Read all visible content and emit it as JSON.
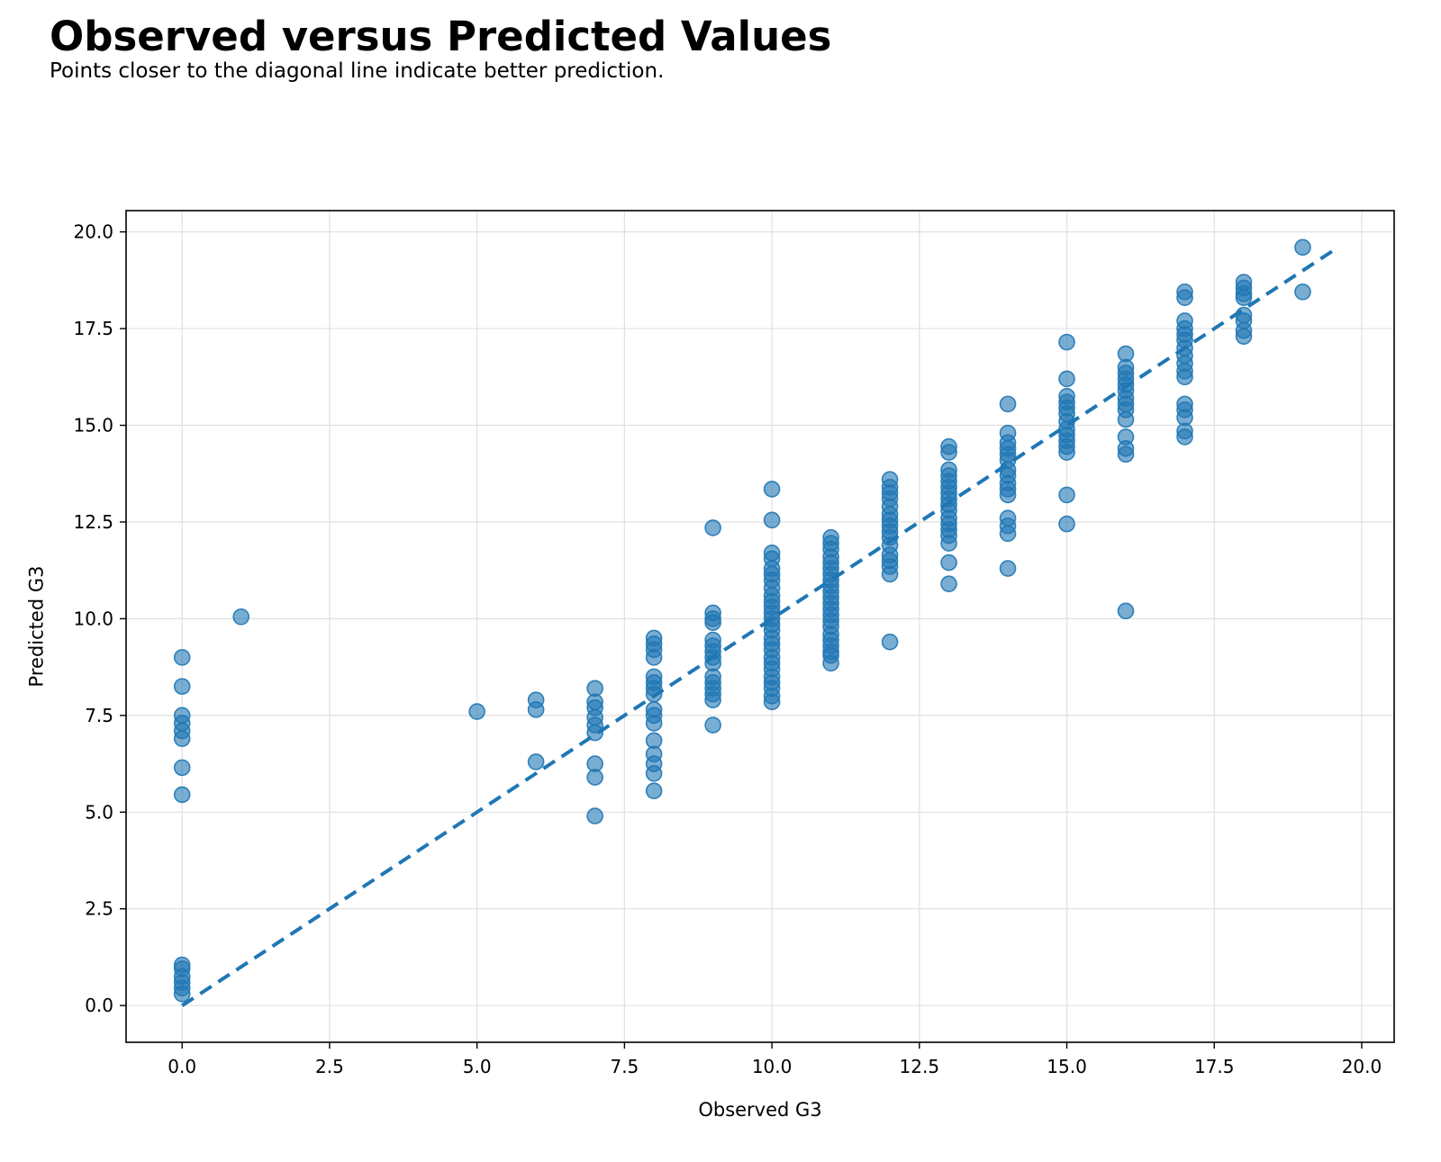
{
  "chart_data": {
    "type": "scatter",
    "title": "Observed versus Predicted Values",
    "subtitle": "Points closer to the diagonal line indicate better prediction.",
    "xlabel": "Observed G3",
    "ylabel": "Predicted G3",
    "xlim": [
      -0.95,
      20.55
    ],
    "ylim": [
      -0.95,
      20.55
    ],
    "xticks": [
      "0.0",
      "2.5",
      "5.0",
      "7.5",
      "10.0",
      "12.5",
      "15.0",
      "17.5",
      "20.0"
    ],
    "yticks": [
      "0.0",
      "2.5",
      "5.0",
      "7.5",
      "10.0",
      "12.5",
      "15.0",
      "17.5",
      "20.0"
    ],
    "grid": true,
    "colors": {
      "points": "#1f77b4",
      "diagonal": "#1f77b4",
      "grid": "#e0e0e0"
    },
    "diagonal": {
      "style": "dashed",
      "from": [
        0,
        0
      ],
      "to": [
        19.6,
        19.6
      ]
    },
    "points": [
      [
        0,
        9.0
      ],
      [
        0,
        8.25
      ],
      [
        0,
        7.5
      ],
      [
        0,
        7.3
      ],
      [
        0,
        7.1
      ],
      [
        0,
        6.9
      ],
      [
        0,
        6.15
      ],
      [
        0,
        5.45
      ],
      [
        0,
        1.05
      ],
      [
        0,
        0.95
      ],
      [
        0,
        0.75
      ],
      [
        0,
        0.6
      ],
      [
        0,
        0.45
      ],
      [
        0,
        0.3
      ],
      [
        1,
        10.05
      ],
      [
        5,
        7.6
      ],
      [
        6,
        7.9
      ],
      [
        6,
        7.65
      ],
      [
        6,
        6.3
      ],
      [
        7,
        8.2
      ],
      [
        7,
        7.85
      ],
      [
        7,
        7.7
      ],
      [
        7,
        7.45
      ],
      [
        7,
        7.25
      ],
      [
        7,
        7.05
      ],
      [
        7,
        6.25
      ],
      [
        7,
        5.9
      ],
      [
        7,
        4.9
      ],
      [
        8,
        9.5
      ],
      [
        8,
        9.35
      ],
      [
        8,
        9.2
      ],
      [
        8,
        9.0
      ],
      [
        8,
        8.5
      ],
      [
        8,
        8.35
      ],
      [
        8,
        8.2
      ],
      [
        8,
        8.05
      ],
      [
        8,
        7.65
      ],
      [
        8,
        7.5
      ],
      [
        8,
        7.3
      ],
      [
        8,
        6.85
      ],
      [
        8,
        6.5
      ],
      [
        8,
        6.25
      ],
      [
        8,
        6.0
      ],
      [
        8,
        5.55
      ],
      [
        9,
        12.35
      ],
      [
        9,
        10.15
      ],
      [
        9,
        10.0
      ],
      [
        9,
        9.9
      ],
      [
        9,
        9.45
      ],
      [
        9,
        9.3
      ],
      [
        9,
        9.15
      ],
      [
        9,
        9.0
      ],
      [
        9,
        8.85
      ],
      [
        9,
        8.5
      ],
      [
        9,
        8.35
      ],
      [
        9,
        8.2
      ],
      [
        9,
        8.05
      ],
      [
        9,
        7.9
      ],
      [
        9,
        7.25
      ],
      [
        10,
        13.35
      ],
      [
        10,
        12.55
      ],
      [
        10,
        11.7
      ],
      [
        10,
        11.55
      ],
      [
        10,
        11.3
      ],
      [
        10,
        11.15
      ],
      [
        10,
        11.0
      ],
      [
        10,
        10.8
      ],
      [
        10,
        10.6
      ],
      [
        10,
        10.45
      ],
      [
        10,
        10.3
      ],
      [
        10,
        10.15
      ],
      [
        10,
        10.0
      ],
      [
        10,
        9.85
      ],
      [
        10,
        9.7
      ],
      [
        10,
        9.5
      ],
      [
        10,
        9.35
      ],
      [
        10,
        9.2
      ],
      [
        10,
        9.0
      ],
      [
        10,
        8.85
      ],
      [
        10,
        8.7
      ],
      [
        10,
        8.5
      ],
      [
        10,
        8.35
      ],
      [
        10,
        8.2
      ],
      [
        10,
        8.0
      ],
      [
        10,
        7.85
      ],
      [
        11,
        12.1
      ],
      [
        11,
        11.95
      ],
      [
        11,
        11.8
      ],
      [
        11,
        11.6
      ],
      [
        11,
        11.45
      ],
      [
        11,
        11.3
      ],
      [
        11,
        11.15
      ],
      [
        11,
        11.0
      ],
      [
        11,
        10.85
      ],
      [
        11,
        10.7
      ],
      [
        11,
        10.55
      ],
      [
        11,
        10.4
      ],
      [
        11,
        10.25
      ],
      [
        11,
        10.1
      ],
      [
        11,
        9.95
      ],
      [
        11,
        9.8
      ],
      [
        11,
        9.6
      ],
      [
        11,
        9.45
      ],
      [
        11,
        9.3
      ],
      [
        11,
        9.15
      ],
      [
        11,
        9.05
      ],
      [
        11,
        8.85
      ],
      [
        12,
        13.6
      ],
      [
        12,
        13.4
      ],
      [
        12,
        13.25
      ],
      [
        12,
        13.1
      ],
      [
        12,
        12.9
      ],
      [
        12,
        12.7
      ],
      [
        12,
        12.55
      ],
      [
        12,
        12.4
      ],
      [
        12,
        12.25
      ],
      [
        12,
        12.1
      ],
      [
        12,
        11.9
      ],
      [
        12,
        11.65
      ],
      [
        12,
        11.5
      ],
      [
        12,
        11.35
      ],
      [
        12,
        11.15
      ],
      [
        12,
        9.4
      ],
      [
        13,
        14.45
      ],
      [
        13,
        14.3
      ],
      [
        13,
        13.85
      ],
      [
        13,
        13.7
      ],
      [
        13,
        13.55
      ],
      [
        13,
        13.4
      ],
      [
        13,
        13.25
      ],
      [
        13,
        13.1
      ],
      [
        13,
        12.95
      ],
      [
        13,
        12.8
      ],
      [
        13,
        12.6
      ],
      [
        13,
        12.45
      ],
      [
        13,
        12.3
      ],
      [
        13,
        12.15
      ],
      [
        13,
        11.95
      ],
      [
        13,
        11.45
      ],
      [
        13,
        10.9
      ],
      [
        14,
        15.55
      ],
      [
        14,
        14.8
      ],
      [
        14,
        14.55
      ],
      [
        14,
        14.4
      ],
      [
        14,
        14.25
      ],
      [
        14,
        14.1
      ],
      [
        14,
        13.85
      ],
      [
        14,
        13.7
      ],
      [
        14,
        13.5
      ],
      [
        14,
        13.35
      ],
      [
        14,
        13.2
      ],
      [
        14,
        12.6
      ],
      [
        14,
        12.4
      ],
      [
        14,
        12.2
      ],
      [
        14,
        11.3
      ],
      [
        15,
        17.15
      ],
      [
        15,
        16.2
      ],
      [
        15,
        15.75
      ],
      [
        15,
        15.6
      ],
      [
        15,
        15.45
      ],
      [
        15,
        15.3
      ],
      [
        15,
        15.1
      ],
      [
        15,
        14.9
      ],
      [
        15,
        14.75
      ],
      [
        15,
        14.6
      ],
      [
        15,
        14.45
      ],
      [
        15,
        14.3
      ],
      [
        15,
        13.2
      ],
      [
        15,
        12.45
      ],
      [
        16,
        16.85
      ],
      [
        16,
        16.5
      ],
      [
        16,
        16.35
      ],
      [
        16,
        16.2
      ],
      [
        16,
        16.05
      ],
      [
        16,
        15.9
      ],
      [
        16,
        15.7
      ],
      [
        16,
        15.55
      ],
      [
        16,
        15.4
      ],
      [
        16,
        15.15
      ],
      [
        16,
        14.7
      ],
      [
        16,
        14.4
      ],
      [
        16,
        14.25
      ],
      [
        16,
        10.2
      ],
      [
        17,
        18.45
      ],
      [
        17,
        18.3
      ],
      [
        17,
        17.7
      ],
      [
        17,
        17.5
      ],
      [
        17,
        17.35
      ],
      [
        17,
        17.2
      ],
      [
        17,
        17.0
      ],
      [
        17,
        16.8
      ],
      [
        17,
        16.6
      ],
      [
        17,
        16.4
      ],
      [
        17,
        16.25
      ],
      [
        17,
        15.55
      ],
      [
        17,
        15.4
      ],
      [
        17,
        15.2
      ],
      [
        17,
        14.85
      ],
      [
        17,
        14.7
      ],
      [
        18,
        18.7
      ],
      [
        18,
        18.55
      ],
      [
        18,
        18.4
      ],
      [
        18,
        18.3
      ],
      [
        18,
        17.85
      ],
      [
        18,
        17.7
      ],
      [
        18,
        17.45
      ],
      [
        18,
        17.3
      ],
      [
        19,
        19.6
      ],
      [
        19,
        18.45
      ]
    ]
  }
}
